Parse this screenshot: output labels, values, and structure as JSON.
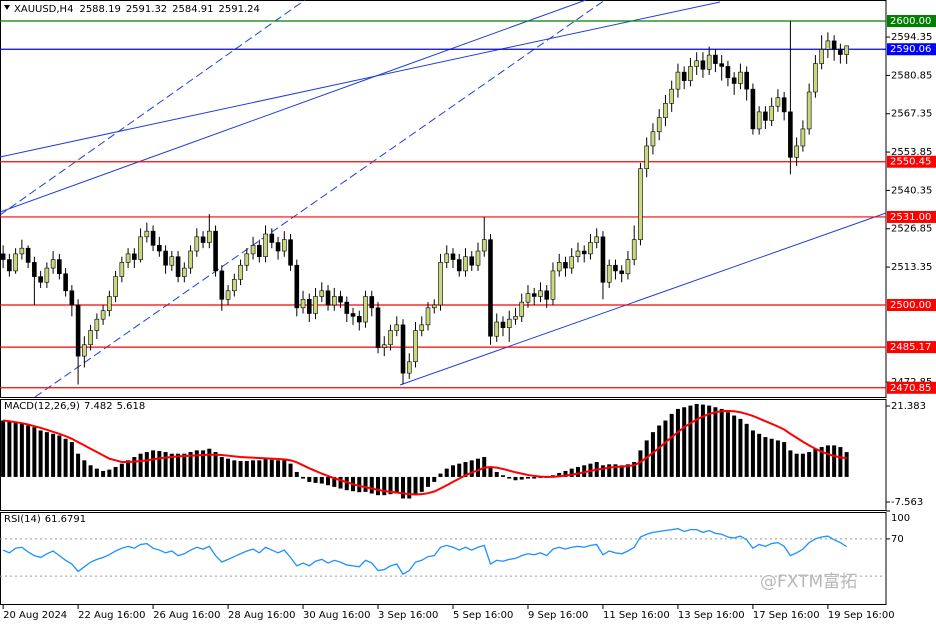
{
  "watermark": "@FXTM富拓",
  "chart_data": [
    {
      "type": "candlestick",
      "symbol": "XAUUSD,H4",
      "header_values": [
        2588.19,
        2591.32,
        2584.91,
        2591.24
      ],
      "up_color": "#c9d77f",
      "down_color": "#000000",
      "xlim": [
        -0.5,
        141.3
      ],
      "xticks": [
        {
          "value": 0,
          "label": "20 Aug 2024"
        },
        {
          "value": 12,
          "label": "22 Aug 16:00"
        },
        {
          "value": 24,
          "label": "26 Aug 16:00"
        },
        {
          "value": 36,
          "label": "28 Aug 16:00"
        },
        {
          "value": 48,
          "label": "30 Aug 16:00"
        },
        {
          "value": 60,
          "label": "3 Sep 16:00"
        },
        {
          "value": 72,
          "label": "5 Sep 16:00"
        },
        {
          "value": 84,
          "label": "9 Sep 16:00"
        },
        {
          "value": 96,
          "label": "11 Sep 16:00"
        },
        {
          "value": 108,
          "label": "13 Sep 16:00"
        },
        {
          "value": 120,
          "label": "17 Sep 16:00"
        },
        {
          "value": 132,
          "label": "19 Sep 16:00"
        }
      ],
      "ylim": [
        2467.6,
        2607.4
      ],
      "yticks": [
        2594.35,
        2580.85,
        2567.35,
        2553.85,
        2540.35,
        2526.85,
        2513.35,
        2472.85
      ],
      "levels": [
        {
          "value": 2600,
          "label": "2600.00",
          "color": "#008000"
        },
        {
          "value": 2590.06,
          "label": "2590.06",
          "color": "#0000ff"
        },
        {
          "value": 2550.45,
          "label": "2550.45",
          "color": "#ff0000"
        },
        {
          "value": 2531,
          "label": "2531.00",
          "color": "#ff0000"
        },
        {
          "value": 2500,
          "label": "2500.00",
          "color": "#ff0000"
        },
        {
          "value": 2485.17,
          "label": "2485.17",
          "color": "#ff0000"
        },
        {
          "value": 2470.85,
          "label": "2470.85",
          "color": "#ff0000"
        }
      ],
      "candles": [
        [
          2518,
          2521,
          2513,
          2516
        ],
        [
          2516,
          2518,
          2510,
          2512
        ],
        [
          2512,
          2520,
          2511,
          2518
        ],
        [
          2518,
          2523,
          2516,
          2520
        ],
        [
          2520,
          2521,
          2513,
          2515
        ],
        [
          2515,
          2517,
          2500,
          2510
        ],
        [
          2510,
          2512,
          2506,
          2508
        ],
        [
          2508,
          2515,
          2506,
          2513
        ],
        [
          2513,
          2519,
          2511,
          2516
        ],
        [
          2516,
          2518,
          2509,
          2511
        ],
        [
          2511,
          2513,
          2503,
          2505
        ],
        [
          2505,
          2507,
          2496,
          2500
        ],
        [
          2500,
          2502,
          2472,
          2482
        ],
        [
          2482,
          2489,
          2478,
          2486
        ],
        [
          2486,
          2493,
          2484,
          2491
        ],
        [
          2491,
          2497,
          2488,
          2495
        ],
        [
          2495,
          2500,
          2493,
          2498
        ],
        [
          2498,
          2505,
          2496,
          2503
        ],
        [
          2503,
          2512,
          2501,
          2510
        ],
        [
          2510,
          2517,
          2508,
          2515
        ],
        [
          2515,
          2520,
          2513,
          2518
        ],
        [
          2518,
          2520,
          2513,
          2516
        ],
        [
          2516,
          2527,
          2515,
          2524
        ],
        [
          2524,
          2529,
          2522,
          2526
        ],
        [
          2526,
          2528,
          2519,
          2521
        ],
        [
          2521,
          2524,
          2517,
          2519
        ],
        [
          2519,
          2521,
          2511,
          2514
        ],
        [
          2514,
          2519,
          2512,
          2517
        ],
        [
          2517,
          2519,
          2508,
          2510
        ],
        [
          2510,
          2515,
          2508,
          2513
        ],
        [
          2513,
          2521,
          2511,
          2519
        ],
        [
          2519,
          2527,
          2517,
          2524
        ],
        [
          2524,
          2526,
          2520,
          2522
        ],
        [
          2522,
          2532,
          2520,
          2526
        ],
        [
          2526,
          2528,
          2510,
          2512
        ],
        [
          2512,
          2514,
          2498,
          2502
        ],
        [
          2502,
          2507,
          2500,
          2505
        ],
        [
          2505,
          2511,
          2503,
          2509
        ],
        [
          2509,
          2516,
          2507,
          2514
        ],
        [
          2514,
          2520,
          2512,
          2518
        ],
        [
          2518,
          2524,
          2516,
          2521
        ],
        [
          2521,
          2523,
          2515,
          2517
        ],
        [
          2517,
          2528,
          2515,
          2525
        ],
        [
          2525,
          2527,
          2520,
          2522
        ],
        [
          2522,
          2524,
          2516,
          2519
        ],
        [
          2519,
          2526,
          2517,
          2523
        ],
        [
          2523,
          2525,
          2512,
          2514
        ],
        [
          2514,
          2516,
          2496,
          2499
        ],
        [
          2499,
          2505,
          2497,
          2502
        ],
        [
          2502,
          2504,
          2494,
          2497
        ],
        [
          2497,
          2506,
          2495,
          2503
        ],
        [
          2503,
          2508,
          2501,
          2505
        ],
        [
          2505,
          2507,
          2498,
          2500
        ],
        [
          2500,
          2506,
          2498,
          2503
        ],
        [
          2503,
          2505,
          2499,
          2501
        ],
        [
          2501,
          2503,
          2494,
          2497
        ],
        [
          2497,
          2499,
          2493,
          2496
        ],
        [
          2496,
          2498,
          2491,
          2494
        ],
        [
          2494,
          2505,
          2492,
          2503
        ],
        [
          2503,
          2505,
          2496,
          2499
        ],
        [
          2499,
          2501,
          2483,
          2485
        ],
        [
          2485,
          2489,
          2482,
          2486
        ],
        [
          2486,
          2493,
          2484,
          2491
        ],
        [
          2491,
          2496,
          2489,
          2493
        ],
        [
          2493,
          2495,
          2472,
          2476
        ],
        [
          2476,
          2483,
          2474,
          2480
        ],
        [
          2480,
          2494,
          2478,
          2491
        ],
        [
          2491,
          2496,
          2489,
          2493
        ],
        [
          2493,
          2501,
          2491,
          2499
        ],
        [
          2499,
          2502,
          2497,
          2500
        ],
        [
          2500,
          2518,
          2498,
          2515
        ],
        [
          2515,
          2521,
          2513,
          2518
        ],
        [
          2518,
          2520,
          2513,
          2516
        ],
        [
          2516,
          2518,
          2510,
          2512
        ],
        [
          2512,
          2520,
          2510,
          2517
        ],
        [
          2517,
          2519,
          2512,
          2514
        ],
        [
          2514,
          2522,
          2512,
          2519
        ],
        [
          2519,
          2531,
          2517,
          2523
        ],
        [
          2523,
          2525,
          2486,
          2489
        ],
        [
          2489,
          2497,
          2487,
          2494
        ],
        [
          2494,
          2496,
          2489,
          2492
        ],
        [
          2492,
          2498,
          2487,
          2495
        ],
        [
          2495,
          2499,
          2493,
          2496
        ],
        [
          2496,
          2504,
          2494,
          2501
        ],
        [
          2501,
          2507,
          2499,
          2504
        ],
        [
          2504,
          2506,
          2500,
          2503
        ],
        [
          2503,
          2508,
          2501,
          2505
        ],
        [
          2505,
          2507,
          2499,
          2502
        ],
        [
          2502,
          2515,
          2500,
          2512
        ],
        [
          2512,
          2518,
          2510,
          2515
        ],
        [
          2515,
          2517,
          2510,
          2513
        ],
        [
          2513,
          2520,
          2511,
          2517
        ],
        [
          2517,
          2522,
          2515,
          2519
        ],
        [
          2519,
          2521,
          2515,
          2518
        ],
        [
          2518,
          2525,
          2516,
          2522
        ],
        [
          2522,
          2527,
          2520,
          2524
        ],
        [
          2524,
          2526,
          2502,
          2508
        ],
        [
          2508,
          2516,
          2506,
          2514
        ],
        [
          2514,
          2516,
          2509,
          2512
        ],
        [
          2512,
          2514,
          2508,
          2511
        ],
        [
          2511,
          2519,
          2509,
          2516
        ],
        [
          2516,
          2528,
          2514,
          2523
        ],
        [
          2523,
          2550,
          2521,
          2548
        ],
        [
          2548,
          2559,
          2545,
          2556
        ],
        [
          2556,
          2564,
          2553,
          2561
        ],
        [
          2561,
          2569,
          2558,
          2566
        ],
        [
          2566,
          2574,
          2563,
          2571
        ],
        [
          2571,
          2579,
          2568,
          2576
        ],
        [
          2576,
          2585,
          2573,
          2582
        ],
        [
          2582,
          2584,
          2576,
          2579
        ],
        [
          2579,
          2587,
          2577,
          2584
        ],
        [
          2584,
          2589,
          2581,
          2586
        ],
        [
          2586,
          2589,
          2580,
          2583
        ],
        [
          2583,
          2591,
          2581,
          2588
        ],
        [
          2588,
          2590,
          2582,
          2585
        ],
        [
          2585,
          2588,
          2579,
          2584
        ],
        [
          2584,
          2586,
          2577,
          2580
        ],
        [
          2580,
          2582,
          2574,
          2578
        ],
        [
          2578,
          2585,
          2576,
          2582
        ],
        [
          2582,
          2584,
          2572,
          2576
        ],
        [
          2576,
          2578,
          2560,
          2562
        ],
        [
          2562,
          2570,
          2560,
          2568
        ],
        [
          2568,
          2570,
          2562,
          2565
        ],
        [
          2565,
          2573,
          2563,
          2570
        ],
        [
          2570,
          2576,
          2568,
          2573
        ],
        [
          2573,
          2575,
          2565,
          2568
        ],
        [
          2568,
          2600,
          2546,
          2552
        ],
        [
          2552,
          2559,
          2549,
          2556
        ],
        [
          2556,
          2565,
          2554,
          2562
        ],
        [
          2562,
          2578,
          2560,
          2575
        ],
        [
          2575,
          2588,
          2573,
          2585
        ],
        [
          2585,
          2595,
          2583,
          2590
        ],
        [
          2590,
          2596,
          2587,
          2593
        ],
        [
          2593,
          2595,
          2586,
          2590
        ],
        [
          2590,
          2592,
          2585,
          2588.19
        ],
        [
          2588.19,
          2591.32,
          2584.91,
          2591.24
        ]
      ]
    },
    {
      "type": "macd",
      "title": "MACD(12,26,9)",
      "color": "#000000",
      "signal_color": "#ff0000",
      "ylim": [
        -9.97,
        23.49
      ],
      "yticks": [
        21.383,
        -7.563
      ],
      "values": [
        17,
        17,
        16.5,
        16,
        15.5,
        15,
        14,
        13.5,
        13,
        12.5,
        11.5,
        10.5,
        7,
        5,
        3.5,
        2.5,
        1.8,
        2.2,
        3,
        4,
        5,
        6,
        7,
        7.5,
        8,
        7.8,
        7.5,
        7,
        7,
        7,
        7.5,
        8,
        8,
        8.5,
        7.5,
        6,
        5.5,
        5,
        4.8,
        4.8,
        5,
        5,
        5.5,
        5.2,
        5,
        5,
        4,
        1.5,
        -0.5,
        -1.5,
        -1.8,
        -2,
        -2.5,
        -3,
        -3.5,
        -4,
        -4.3,
        -4.6,
        -4.5,
        -5,
        -5.5,
        -5.5,
        -5.2,
        -5,
        -6.5,
        -6.5,
        -5.5,
        -4.5,
        -3,
        -1.5,
        1,
        2.5,
        3.5,
        4,
        4.5,
        5,
        5.5,
        6,
        3,
        1.5,
        0.5,
        -0.5,
        -1,
        -0.8,
        -0.5,
        -0.5,
        -0.3,
        -0.3,
        0.5,
        1.2,
        1.8,
        2.5,
        3,
        3.5,
        4,
        4.5,
        3.5,
        3.8,
        3.8,
        3.5,
        3.8,
        4.5,
        8,
        11,
        13.5,
        15.5,
        17,
        19,
        20.5,
        21,
        21.5,
        22,
        21.8,
        21.5,
        21,
        20.5,
        19.5,
        18.5,
        17.5,
        16,
        14,
        13,
        12,
        11.5,
        11,
        10.5,
        8,
        7,
        7,
        7.5,
        8.5,
        9,
        9.5,
        9.5,
        9,
        7.482
      ],
      "signal": [
        17,
        16.8,
        16.5,
        16.2,
        15.8,
        15.3,
        14.8,
        14.2,
        13.6,
        13,
        12.3,
        11.5,
        10.5,
        9.5,
        8.5,
        7.5,
        6.5,
        5.5,
        5,
        4.5,
        4.5,
        4.6,
        4.8,
        5,
        5.3,
        5.6,
        5.8,
        6,
        6.2,
        6.3,
        6.4,
        6.5,
        6.6,
        6.7,
        6.7,
        6.6,
        6.4,
        6.2,
        6,
        5.9,
        5.8,
        5.7,
        5.6,
        5.5,
        5.4,
        5.3,
        5,
        4.4,
        3.5,
        2.6,
        1.8,
        1,
        0.3,
        -0.4,
        -1,
        -1.6,
        -2.2,
        -2.7,
        -3.1,
        -3.5,
        -3.9,
        -4.2,
        -4.5,
        -4.7,
        -5,
        -5.2,
        -5.3,
        -5.2,
        -4.9,
        -4.4,
        -3.5,
        -2.5,
        -1.5,
        -0.5,
        0.5,
        1.3,
        2,
        2.8,
        3,
        2.8,
        2.4,
        1.9,
        1.4,
        1,
        0.6,
        0.3,
        0.1,
        0,
        0,
        0.2,
        0.4,
        0.7,
        1,
        1.4,
        1.8,
        2.2,
        2.5,
        2.8,
        3,
        3.1,
        3.3,
        3.5,
        4.5,
        5.8,
        7.3,
        8.8,
        10.4,
        12,
        13.5,
        15,
        16.2,
        17.3,
        18.2,
        19,
        19.5,
        19.8,
        19.9,
        19.8,
        19.5,
        19,
        18.4,
        17.6,
        16.8,
        16,
        15.2,
        14.3,
        13,
        11.8,
        10.6,
        9.5,
        8.5,
        7.6,
        6.9,
        6.3,
        5.9,
        5.618
      ]
    },
    {
      "type": "line",
      "title": "RSI(14)",
      "color": "#1e90ff",
      "ylim": [
        0,
        100
      ],
      "yticks": [
        100,
        70
      ],
      "levels": [
        70,
        30
      ],
      "values": [
        58,
        55,
        60,
        61,
        56,
        52,
        50,
        54,
        57,
        52,
        47,
        43,
        35,
        40,
        45,
        48,
        50,
        53,
        57,
        60,
        62,
        60,
        64,
        65,
        60,
        58,
        55,
        57,
        52,
        54,
        58,
        61,
        59,
        62,
        52,
        45,
        48,
        51,
        54,
        57,
        59,
        55,
        61,
        58,
        55,
        58,
        50,
        41,
        44,
        41,
        46,
        48,
        44,
        47,
        45,
        42,
        41,
        40,
        47,
        44,
        36,
        37,
        41,
        43,
        32,
        36,
        45,
        47,
        51,
        52,
        61,
        63,
        61,
        58,
        61,
        58,
        61,
        63,
        43,
        47,
        46,
        48,
        49,
        52,
        54,
        53,
        55,
        52,
        59,
        61,
        59,
        61,
        62,
        61,
        63,
        64,
        53,
        57,
        55,
        54,
        57,
        61,
        72,
        75,
        77,
        78,
        79,
        80,
        81,
        78,
        80,
        80,
        77,
        79,
        76,
        75,
        72,
        71,
        73,
        69,
        60,
        64,
        62,
        65,
        66,
        62,
        52,
        55,
        59,
        66,
        70,
        72,
        73,
        69,
        66,
        61.6791
      ]
    }
  ]
}
